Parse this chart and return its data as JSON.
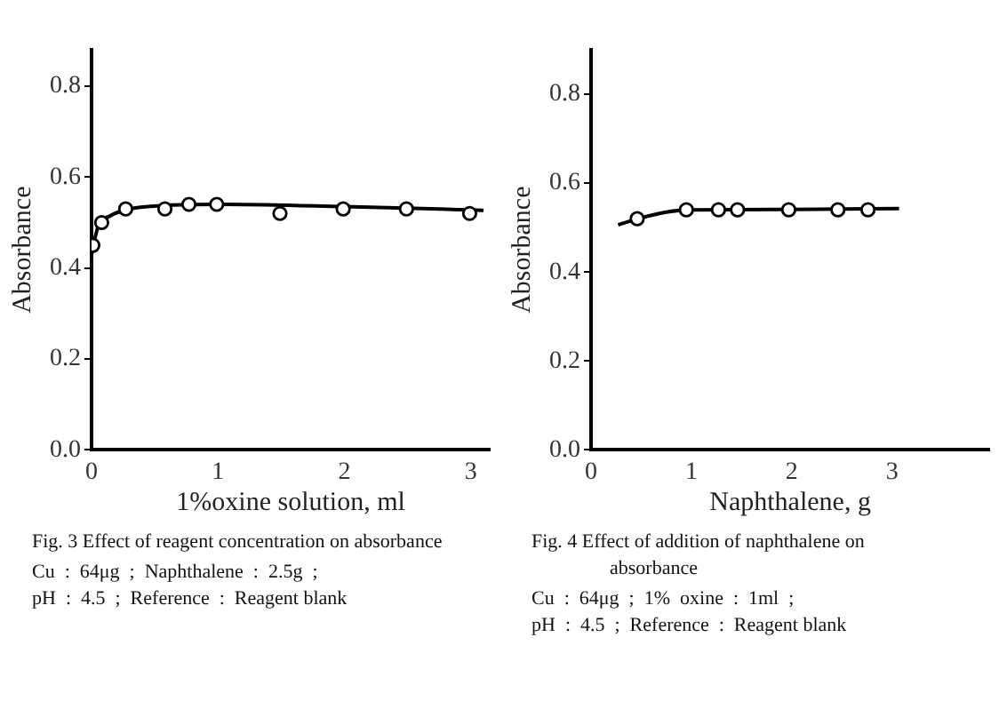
{
  "chart_data": [
    {
      "type": "scatter",
      "title": "Fig. 3  Effect of reagent concentration on absorbance",
      "xlabel": "1%oxine solution, ml",
      "ylabel": "Absorbance",
      "series": [
        {
          "type": "scatter",
          "color": "#000000",
          "marker": "circle",
          "x": [
            0.01,
            0.08,
            0.27,
            0.58,
            0.77,
            0.99,
            1.49,
            1.99,
            2.49,
            2.99
          ],
          "values": [
            0.45,
            0.5,
            0.53,
            0.53,
            0.54,
            0.54,
            0.52,
            0.53,
            0.53,
            0.52
          ]
        },
        {
          "type": "line",
          "color": "#000000",
          "marker": "none",
          "x": [
            0,
            0.05,
            0.15,
            0.3,
            0.6,
            1,
            2,
            3.1
          ],
          "values": [
            0.43,
            0.49,
            0.515,
            0.53,
            0.538,
            0.54,
            0.535,
            0.527
          ]
        }
      ],
      "xlim": [
        0,
        3.15
      ],
      "ylim": [
        0,
        0.88
      ],
      "xticks": [
        0,
        1,
        2,
        3
      ],
      "yticks": [
        {
          "value": 0,
          "label": "0.0"
        },
        {
          "value": 0.2,
          "label": "0.2"
        },
        {
          "value": 0.4,
          "label": "0.4"
        },
        {
          "value": 0.6,
          "label": "0.6"
        },
        {
          "value": 0.8,
          "label": "0.8"
        }
      ],
      "grid": false,
      "legend": false,
      "annotations": [
        "Cu  :  64μg  ;  Naphthalene  :  2.5g  ;",
        "pH  :  4.5  ;  Reference  :  Reagent blank"
      ]
    },
    {
      "type": "scatter",
      "title": "Fig. 4  Effect of addition of naphthalene on absorbance",
      "xlabel": "Naphthalene, g",
      "ylabel": "Absorbance",
      "series": [
        {
          "type": "scatter",
          "color": "#000000",
          "marker": "circle",
          "x": [
            0.46,
            0.95,
            1.27,
            1.46,
            1.97,
            2.46,
            2.76
          ],
          "values": [
            0.52,
            0.54,
            0.54,
            0.54,
            0.54,
            0.54,
            0.54
          ]
        },
        {
          "type": "line",
          "color": "#000000",
          "marker": "none",
          "x": [
            0.27,
            0.5,
            0.75,
            1,
            2,
            3.07
          ],
          "values": [
            0.506,
            0.522,
            0.535,
            0.54,
            0.541,
            0.543
          ]
        }
      ],
      "xlim": [
        0,
        3.97
      ],
      "ylim": [
        0,
        0.9
      ],
      "xticks": [
        0,
        1,
        2,
        3
      ],
      "yticks": [
        {
          "value": 0,
          "label": "0.0"
        },
        {
          "value": 0.2,
          "label": "0.2"
        },
        {
          "value": 0.4,
          "label": "0.4"
        },
        {
          "value": 0.6,
          "label": "0.6"
        },
        {
          "value": 0.8,
          "label": "0.8"
        }
      ],
      "grid": false,
      "legend": false,
      "annotations": [
        "Cu  :  64μg  ;  1%  oxine  :  1ml  ;",
        "pH  :  4.5  ;  Reference  :  Reagent blank"
      ]
    }
  ]
}
